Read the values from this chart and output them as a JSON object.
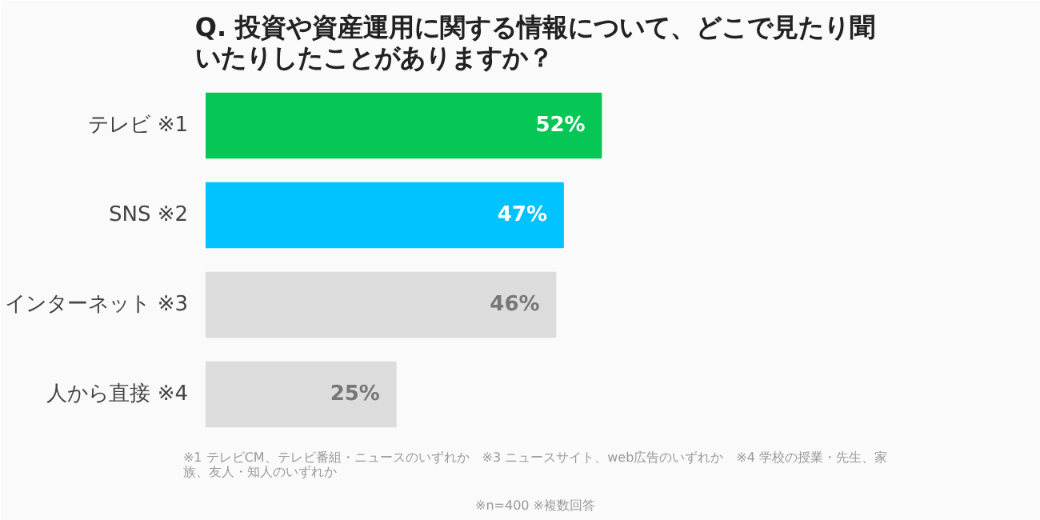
{
  "chart_data": {
    "type": "bar",
    "orientation": "horizontal",
    "title": "Q. 投資や資産運用に関する情報について、どこで見たり聞いたりしたことがありますか？",
    "categories": [
      "テレビ ※1",
      "SNS ※2",
      "インターネット ※3",
      "人から直接 ※4"
    ],
    "values": [
      52,
      47,
      46,
      25
    ],
    "colors": [
      "#06c755",
      "#00c3ff",
      "#dcdcdc",
      "#dcdcdc"
    ],
    "value_labels": [
      "52%",
      "47%",
      "46%",
      "25%"
    ],
    "grid": false,
    "annotations": [
      "※n=400 ※複数回答",
      "※1 テレビCM、テレビ番組・ニュースのいずれか　※3 ニュースサイト、web広告のいずれか　※4 学校の授業・先生、家族、友人・知人のいずれか"
    ]
  }
}
